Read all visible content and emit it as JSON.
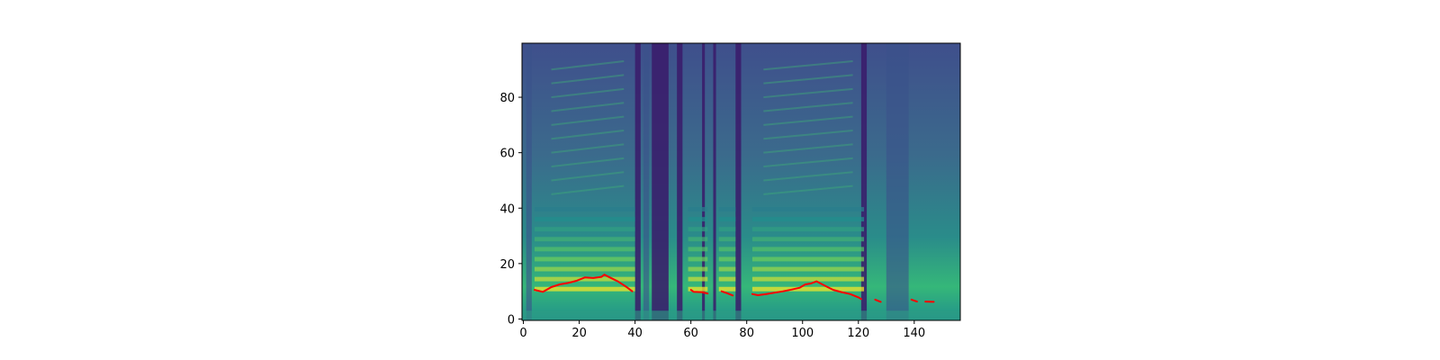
{
  "chart_data": {
    "type": "heatmap",
    "title": "",
    "xlabel": "",
    "ylabel": "",
    "xlim": [
      -0.5,
      156.5
    ],
    "ylim": [
      -0.5,
      99.5
    ],
    "x_ticks": [
      0,
      20,
      40,
      60,
      80,
      100,
      120,
      140
    ],
    "x_tick_labels": [
      "0",
      "20",
      "40",
      "60",
      "80",
      "100",
      "120",
      "140"
    ],
    "y_ticks": [
      0,
      20,
      40,
      60,
      80
    ],
    "y_tick_labels": [
      "0",
      "20",
      "40",
      "60",
      "80"
    ],
    "colormap": "viridis",
    "grid": false,
    "legend": "none",
    "heatmap": {
      "n_frames": 157,
      "n_bins": 100,
      "description_of_content": "mel spectrogram (frames x mel bins)"
    },
    "series": [
      {
        "color": "#ff0000",
        "segments": [
          {
            "x": [
              4,
              7,
              10,
              13,
              16,
              19,
              22,
              25,
              28,
              29,
              31,
              34,
              37,
              39
            ],
            "y": [
              10.5,
              9.8,
              11.5,
              12.5,
              13,
              13.8,
              15,
              14.8,
              15.2,
              16,
              15,
              13.5,
              11.5,
              10
            ]
          },
          {
            "x": [
              60,
              61,
              64,
              66
            ],
            "y": [
              10.5,
              9.8,
              9.7,
              9.2
            ]
          },
          {
            "x": [
              71,
              73,
              75
            ],
            "y": [
              10,
              9.3,
              8.5
            ]
          },
          {
            "x": [
              82,
              84,
              87,
              90,
              93,
              96,
              99,
              101,
              103,
              105,
              108,
              111,
              114,
              117,
              120,
              121
            ],
            "y": [
              9,
              8.6,
              9,
              9.5,
              10,
              10.6,
              11.3,
              12.5,
              12.8,
              13.6,
              12,
              10.5,
              9.7,
              9,
              7.8,
              7.2
            ]
          },
          {
            "x": [
              126,
              128
            ],
            "y": [
              7,
              6.2
            ]
          },
          {
            "x": [
              139,
              141
            ],
            "y": [
              7,
              6.3
            ]
          },
          {
            "x": [
              144,
              147
            ],
            "y": [
              6.3,
              6.2
            ]
          }
        ]
      }
    ]
  }
}
